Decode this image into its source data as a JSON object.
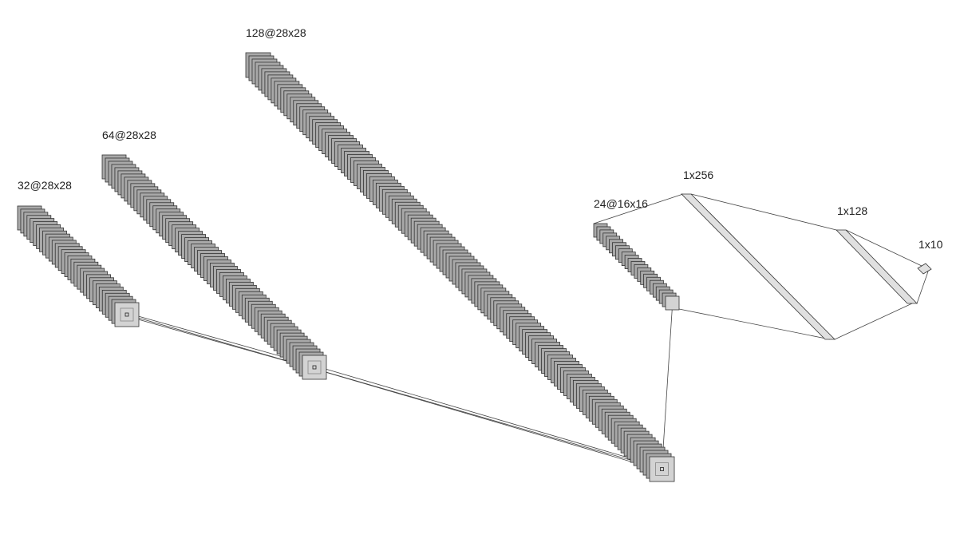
{
  "layers": [
    {
      "id": "conv1",
      "label": "32@28x28"
    },
    {
      "id": "conv2",
      "label": "64@28x28"
    },
    {
      "id": "conv3",
      "label": "128@28x28"
    },
    {
      "id": "conv4",
      "label": "24@16x16"
    },
    {
      "id": "fc1",
      "label": "1x256"
    },
    {
      "id": "fc2",
      "label": "1x128"
    },
    {
      "id": "fc3",
      "label": "1x10"
    }
  ],
  "colors": {
    "feature_map_fill": "#a9a9a9",
    "feature_map_stroke": "#333333",
    "front_map_fill": "#d3d3d3",
    "dense_fill": "#e0e0e0",
    "connection_line": "#444444"
  }
}
